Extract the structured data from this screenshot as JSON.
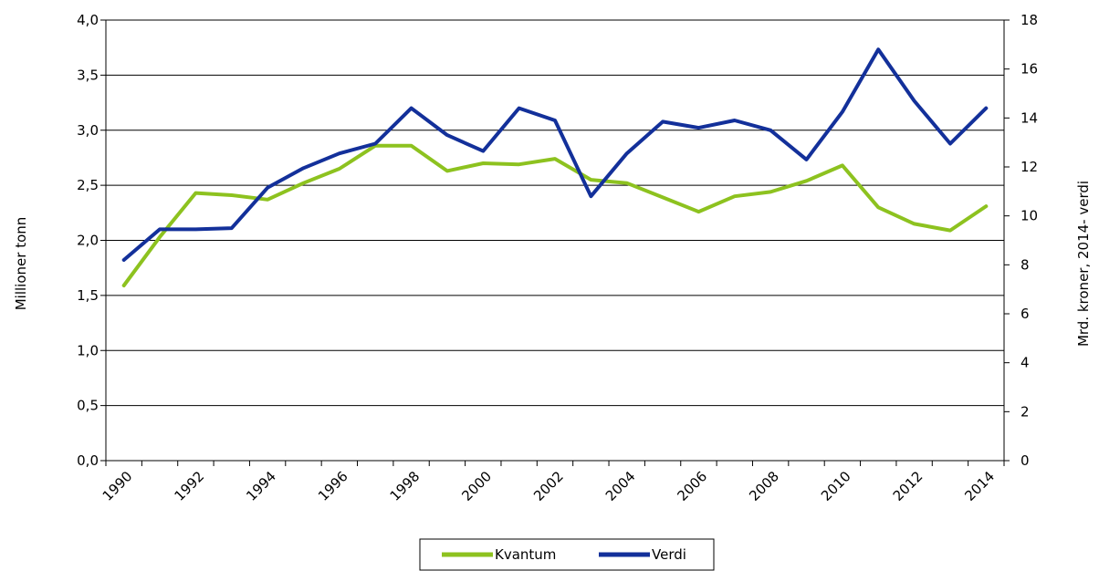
{
  "chart_data": {
    "type": "line",
    "title": "",
    "xlabel": "",
    "ylabel": "Millioner tonn",
    "y2label": "Mrd. kroner, 2014- verdi",
    "x": [
      1990,
      1991,
      1992,
      1993,
      1994,
      1995,
      1996,
      1997,
      1998,
      1999,
      2000,
      2001,
      2002,
      2003,
      2004,
      2005,
      2006,
      2007,
      2008,
      2009,
      2010,
      2011,
      2012,
      2013,
      2014
    ],
    "xtick_labels": [
      "1990",
      "1992",
      "1994",
      "1996",
      "1998",
      "2000",
      "2002",
      "2004",
      "2006",
      "2008",
      "2010",
      "2012",
      "2014"
    ],
    "ylim": [
      0,
      4.0
    ],
    "y_ticks": [
      "0,0",
      "0,5",
      "1,0",
      "1,5",
      "2,0",
      "2,5",
      "3,0",
      "3,5",
      "4,0"
    ],
    "y2lim": [
      0,
      18
    ],
    "y2_ticks": [
      "0",
      "2",
      "4",
      "6",
      "8",
      "10",
      "12",
      "14",
      "16",
      "18"
    ],
    "grid": true,
    "legend_position": "bottom-center",
    "series": [
      {
        "name": "Kvantum",
        "axis": "left",
        "color": "#8dc21f",
        "values": [
          1.59,
          2.03,
          2.43,
          2.41,
          2.37,
          2.52,
          2.65,
          2.86,
          2.86,
          2.63,
          2.7,
          2.69,
          2.74,
          2.55,
          2.52,
          2.39,
          2.26,
          2.4,
          2.44,
          2.54,
          2.68,
          2.3,
          2.15,
          2.09,
          2.31
        ]
      },
      {
        "name": "Verdi",
        "axis": "right",
        "color": "#13309a",
        "values": [
          8.2,
          9.45,
          9.45,
          9.5,
          11.15,
          11.95,
          12.55,
          12.95,
          14.4,
          13.3,
          12.65,
          14.4,
          13.9,
          10.8,
          12.55,
          13.85,
          13.6,
          13.9,
          13.5,
          12.3,
          14.25,
          16.8,
          14.7,
          12.95,
          14.4
        ]
      }
    ]
  }
}
